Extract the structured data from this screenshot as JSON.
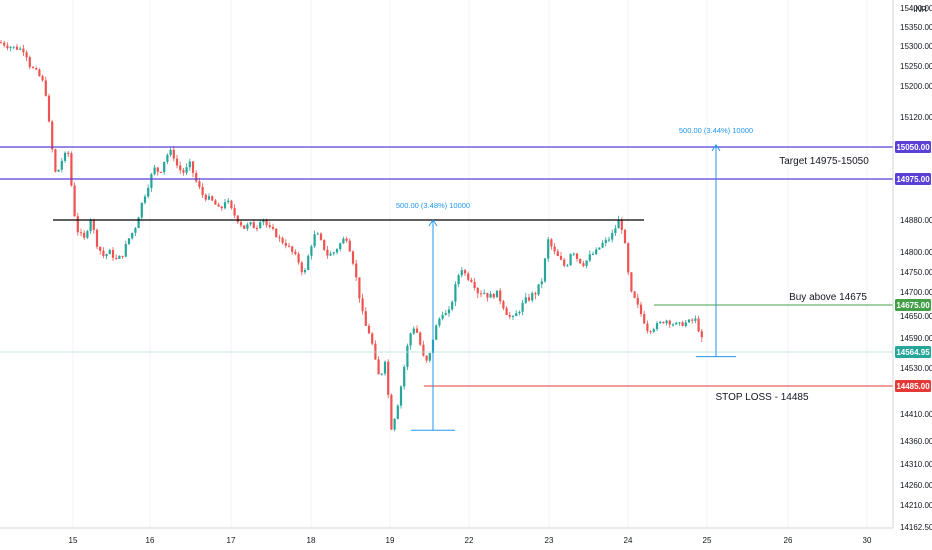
{
  "chart_data": {
    "type": "candlestick",
    "currency": "INR",
    "colors": {
      "up": "#26a69a",
      "down": "#ef5350",
      "target": "#5b3fd6",
      "entry": "#43a047",
      "stop": "#e53935",
      "price": "#26a69a",
      "measure": "#2196f3",
      "neckline": "#000000"
    },
    "x_ticks": [
      "15",
      "16",
      "17",
      "18",
      "19",
      "22",
      "23",
      "24",
      "25",
      "26",
      "30"
    ],
    "y_ticks": [
      "15400.00",
      "15350.00",
      "15300.00",
      "15250.00",
      "15200.00",
      "15120.00",
      "15050.00",
      "14975.00",
      "14880.00",
      "14800.00",
      "14750.00",
      "14700.00",
      "14675.00",
      "14650.00",
      "14590.00",
      "14564.95",
      "14530.00",
      "14485.00",
      "14410.00",
      "14360.00",
      "14310.00",
      "14260.00",
      "14210.00",
      "14162.50"
    ],
    "ylim": [
      14140,
      15420
    ],
    "levels": [
      {
        "name": "target-upper",
        "value": 15050,
        "label": "15050.00",
        "note": "Target 14975-15050"
      },
      {
        "name": "target-lower",
        "value": 14975,
        "label": "14975.00",
        "note": ""
      },
      {
        "name": "entry",
        "value": 14675,
        "label": "14675.00",
        "note": "Buy above 14675"
      },
      {
        "name": "stop-loss",
        "value": 14485,
        "label": "14485.00",
        "note": "STOP LOSS - 14485"
      },
      {
        "name": "last-price",
        "value": 14564.95,
        "label": "14564.95",
        "note": ""
      }
    ],
    "neckline": 14880,
    "measurements": [
      {
        "from": 14380,
        "to": 14880,
        "text": "500.00 (3.48%) 10000"
      },
      {
        "from": 14555,
        "to": 15055,
        "text": "500.00 (3.44%) 10000"
      }
    ],
    "path": [
      [
        0,
        15310
      ],
      [
        8,
        15300
      ],
      [
        16,
        15295
      ],
      [
        25,
        15290
      ],
      [
        30,
        15250
      ],
      [
        38,
        15230
      ],
      [
        45,
        15200
      ],
      [
        50,
        15080
      ],
      [
        56,
        14980
      ],
      [
        62,
        15020
      ],
      [
        68,
        15040
      ],
      [
        74,
        14900
      ],
      [
        78,
        14850
      ],
      [
        85,
        14830
      ],
      [
        90,
        14890
      ],
      [
        97,
        14820
      ],
      [
        103,
        14790
      ],
      [
        110,
        14800
      ],
      [
        116,
        14780
      ],
      [
        122,
        14790
      ],
      [
        128,
        14830
      ],
      [
        135,
        14860
      ],
      [
        142,
        14920
      ],
      [
        148,
        14960
      ],
      [
        154,
        15000
      ],
      [
        160,
        14990
      ],
      [
        166,
        15030
      ],
      [
        172,
        15040
      ],
      [
        178,
        15000
      ],
      [
        184,
        14990
      ],
      [
        190,
        15010
      ],
      [
        196,
        14970
      ],
      [
        202,
        14940
      ],
      [
        208,
        14930
      ],
      [
        214,
        14920
      ],
      [
        220,
        14900
      ],
      [
        226,
        14930
      ],
      [
        232,
        14900
      ],
      [
        238,
        14880
      ],
      [
        244,
        14860
      ],
      [
        250,
        14870
      ],
      [
        256,
        14860
      ],
      [
        262,
        14890
      ],
      [
        268,
        14860
      ],
      [
        274,
        14850
      ],
      [
        280,
        14830
      ],
      [
        286,
        14820
      ],
      [
        292,
        14800
      ],
      [
        298,
        14780
      ],
      [
        304,
        14740
      ],
      [
        310,
        14810
      ],
      [
        316,
        14850
      ],
      [
        322,
        14820
      ],
      [
        328,
        14790
      ],
      [
        334,
        14800
      ],
      [
        340,
        14820
      ],
      [
        346,
        14840
      ],
      [
        352,
        14790
      ],
      [
        358,
        14710
      ],
      [
        362,
        14660
      ],
      [
        366,
        14620
      ],
      [
        370,
        14600
      ],
      [
        374,
        14560
      ],
      [
        378,
        14510
      ],
      [
        382,
        14520
      ],
      [
        386,
        14560
      ],
      [
        390,
        14380
      ],
      [
        394,
        14400
      ],
      [
        398,
        14440
      ],
      [
        402,
        14500
      ],
      [
        406,
        14560
      ],
      [
        410,
        14600
      ],
      [
        414,
        14620
      ],
      [
        418,
        14600
      ],
      [
        422,
        14560
      ],
      [
        426,
        14540
      ],
      [
        430,
        14560
      ],
      [
        436,
        14620
      ],
      [
        442,
        14660
      ],
      [
        448,
        14650
      ],
      [
        454,
        14700
      ],
      [
        458,
        14740
      ],
      [
        462,
        14760
      ],
      [
        466,
        14740
      ],
      [
        472,
        14730
      ],
      [
        478,
        14700
      ],
      [
        484,
        14700
      ],
      [
        490,
        14690
      ],
      [
        496,
        14700
      ],
      [
        502,
        14680
      ],
      [
        506,
        14660
      ],
      [
        512,
        14640
      ],
      [
        518,
        14660
      ],
      [
        524,
        14680
      ],
      [
        530,
        14690
      ],
      [
        536,
        14700
      ],
      [
        542,
        14730
      ],
      [
        548,
        14830
      ],
      [
        554,
        14800
      ],
      [
        560,
        14780
      ],
      [
        566,
        14760
      ],
      [
        572,
        14810
      ],
      [
        578,
        14780
      ],
      [
        584,
        14770
      ],
      [
        590,
        14790
      ],
      [
        596,
        14800
      ],
      [
        602,
        14820
      ],
      [
        608,
        14830
      ],
      [
        614,
        14850
      ],
      [
        618,
        14880
      ],
      [
        622,
        14860
      ],
      [
        626,
        14800
      ],
      [
        630,
        14700
      ],
      [
        636,
        14680
      ],
      [
        642,
        14650
      ],
      [
        648,
        14610
      ],
      [
        654,
        14620
      ],
      [
        660,
        14630
      ],
      [
        666,
        14640
      ],
      [
        672,
        14630
      ],
      [
        678,
        14625
      ],
      [
        684,
        14630
      ],
      [
        690,
        14635
      ],
      [
        696,
        14640
      ],
      [
        700,
        14600
      ],
      [
        704,
        14570
      ]
    ]
  },
  "labels": {
    "currency": "INR"
  }
}
